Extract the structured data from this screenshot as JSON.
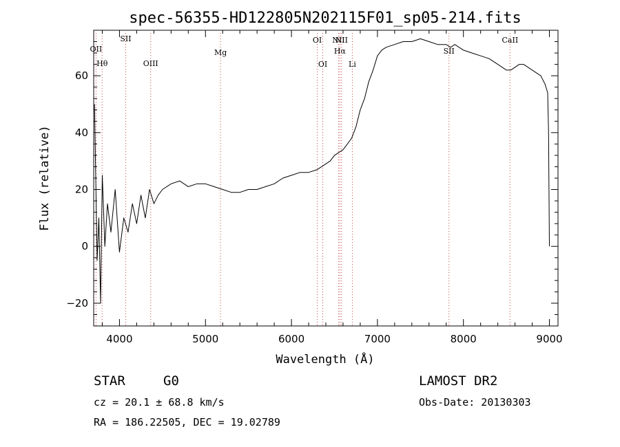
{
  "chart_data": {
    "type": "line",
    "title": "spec-56355-HD122805N202115F01_sp05-214.fits",
    "xlabel": "Wavelength (Å)",
    "ylabel": "Flux (relative)",
    "xlim": [
      3700,
      9100
    ],
    "ylim": [
      -28,
      76
    ],
    "xticks": [
      4000,
      5000,
      6000,
      7000,
      8000,
      9000
    ],
    "yticks": [
      -20,
      0,
      20,
      40,
      60
    ],
    "x_tick_labels": [
      "4000",
      "5000",
      "6000",
      "7000",
      "8000",
      "9000"
    ],
    "y_tick_labels": [
      "−20",
      "0",
      "20",
      "40",
      "60"
    ],
    "series": [
      {
        "x": [
          3710,
          3740,
          3760,
          3780,
          3800,
          3830,
          3860,
          3900,
          3950,
          4000,
          4050,
          4100,
          4150,
          4200,
          4250,
          4300,
          4350,
          4400,
          4450,
          4500,
          4600,
          4700,
          4800,
          4900,
          5000,
          5100,
          5200,
          5300,
          5400,
          5500,
          5600,
          5700,
          5800,
          5900,
          6000,
          6100,
          6200,
          6300,
          6400,
          6450,
          6500,
          6550,
          6600,
          6650,
          6700,
          6750,
          6800,
          6850,
          6900,
          6950,
          7000,
          7050,
          7100,
          7200,
          7300,
          7400,
          7500,
          7600,
          7700,
          7800,
          7850,
          7900,
          8000,
          8100,
          8200,
          8300,
          8400,
          8500,
          8550,
          8600,
          8650,
          8700,
          8800,
          8900,
          8950,
          8980,
          8990,
          9000
        ],
        "y": [
          50,
          -5,
          10,
          -20,
          25,
          0,
          15,
          5,
          20,
          -2,
          10,
          5,
          15,
          8,
          18,
          10,
          20,
          15,
          18,
          20,
          22,
          23,
          21,
          22,
          22,
          21,
          20,
          19,
          19,
          20,
          20,
          21,
          22,
          24,
          25,
          26,
          26,
          27,
          29,
          30,
          32,
          33,
          34,
          36,
          38,
          42,
          48,
          52,
          58,
          62,
          67,
          69,
          70,
          71,
          72,
          72,
          73,
          72,
          71,
          71,
          70,
          71,
          69,
          68,
          67,
          66,
          64,
          62,
          62,
          63,
          64,
          64,
          62,
          60,
          57,
          54,
          40,
          0
        ]
      }
    ],
    "line_markers": [
      {
        "name": "OII",
        "x": 3727
      },
      {
        "name": "Hθ",
        "x": 3798
      },
      {
        "name": "SII",
        "x": 4072
      },
      {
        "name": "OIII",
        "x": 4363
      },
      {
        "name": "Mg",
        "x": 5175
      },
      {
        "name": "OI",
        "x": 6300
      },
      {
        "name": "OI",
        "x": 6364
      },
      {
        "name": "NII",
        "x": 6548
      },
      {
        "name": "Hα",
        "x": 6563
      },
      {
        "name": "NII",
        "x": 6583
      },
      {
        "name": "Li",
        "x": 6708
      },
      {
        "name": "SII",
        "x": 7832
      },
      {
        "name": "CaII",
        "x": 8542
      }
    ],
    "grid": false
  },
  "info": {
    "class_text": "STAR",
    "subclass_text": "G0",
    "cz_text": "cz = 20.1 ± 68.8 km/s",
    "radec_text": "RA = 186.22505, DEC =  19.02789",
    "survey_text": "LAMOST DR2",
    "obsdate_text": "Obs-Date: 20130303"
  }
}
